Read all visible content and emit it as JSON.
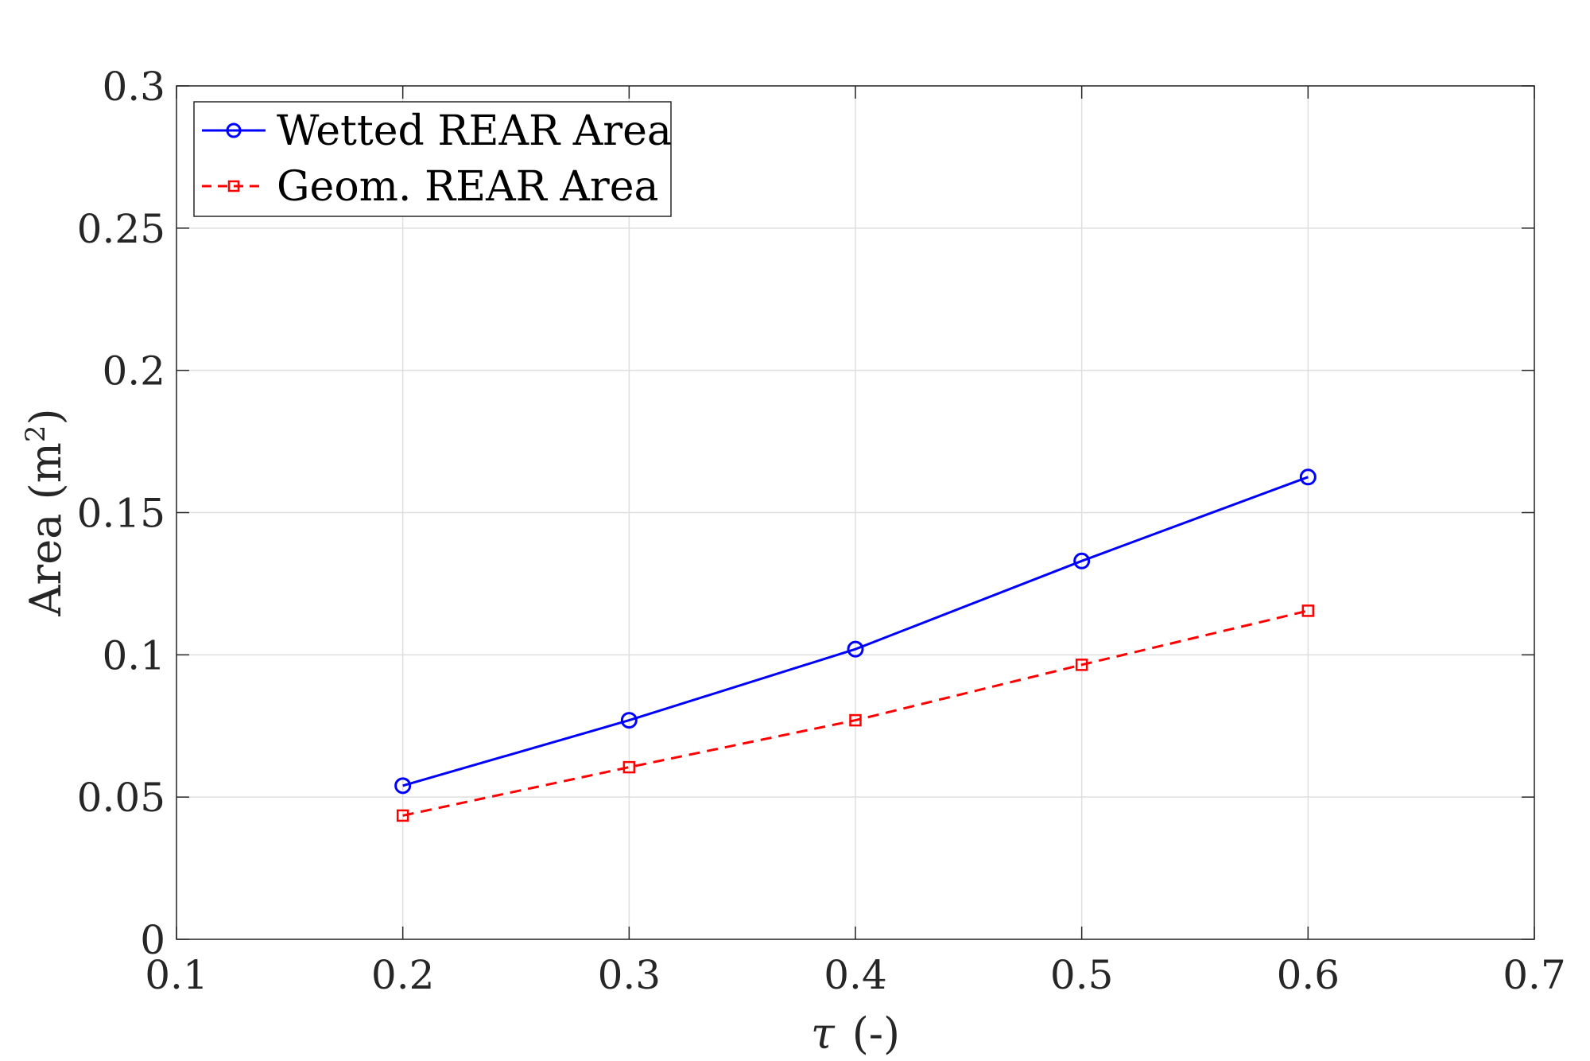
{
  "chart_data": {
    "type": "line",
    "xlabel_symbol": "τ",
    "xlabel_unit": "(-)",
    "ylabel_text": "Area (m",
    "ylabel_sup": "2",
    "ylabel_close": ")",
    "xlim": [
      0.1,
      0.7
    ],
    "ylim": [
      0,
      0.3
    ],
    "xticks": [
      0.1,
      0.2,
      0.3,
      0.4,
      0.5,
      0.6,
      0.7
    ],
    "xtick_labels": [
      "0.1",
      "0.2",
      "0.3",
      "0.4",
      "0.5",
      "0.6",
      "0.7"
    ],
    "yticks": [
      0,
      0.05,
      0.1,
      0.15,
      0.2,
      0.25,
      0.3
    ],
    "ytick_labels": [
      "0",
      "0.05",
      "0.1",
      "0.15",
      "0.2",
      "0.25",
      "0.3"
    ],
    "grid": true,
    "legend_position": "top-left",
    "series": [
      {
        "name": "Wetted REAR Area",
        "color": "#0000ff",
        "line_style": "solid",
        "marker": "circle",
        "x": [
          0.2,
          0.3,
          0.4,
          0.5,
          0.6
        ],
        "y": [
          0.054,
          0.077,
          0.102,
          0.133,
          0.1625
        ]
      },
      {
        "name": "Geom. REAR Area",
        "color": "#ff0000",
        "line_style": "dashed",
        "marker": "square",
        "x": [
          0.2,
          0.3,
          0.4,
          0.5,
          0.6
        ],
        "y": [
          0.0435,
          0.0605,
          0.077,
          0.0965,
          0.1155
        ]
      }
    ]
  }
}
